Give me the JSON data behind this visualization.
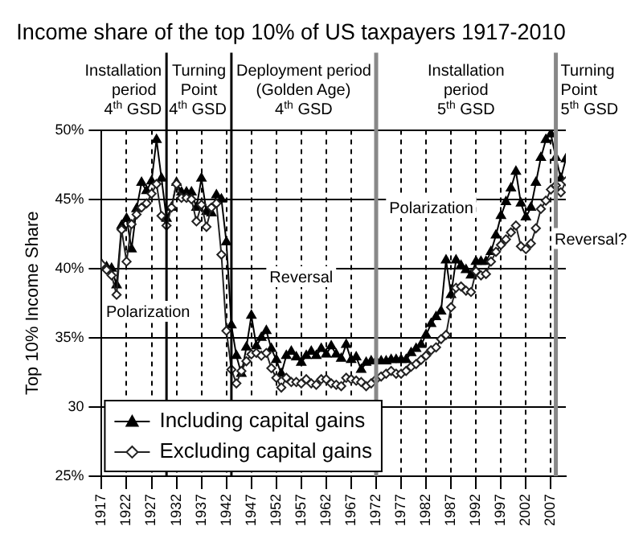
{
  "chart_data": {
    "type": "line",
    "title": "Income share of the top 10% of US taxpayers 1917-2010",
    "ylabel": "Top 10% Income Share",
    "x": [
      1917,
      1918,
      1919,
      1920,
      1921,
      1922,
      1923,
      1924,
      1925,
      1926,
      1927,
      1928,
      1929,
      1930,
      1931,
      1932,
      1933,
      1934,
      1935,
      1936,
      1937,
      1938,
      1939,
      1940,
      1941,
      1942,
      1943,
      1944,
      1945,
      1946,
      1947,
      1948,
      1949,
      1950,
      1951,
      1952,
      1953,
      1954,
      1955,
      1956,
      1957,
      1958,
      1959,
      1960,
      1961,
      1962,
      1963,
      1964,
      1965,
      1966,
      1967,
      1968,
      1969,
      1970,
      1971,
      1972,
      1973,
      1974,
      1975,
      1976,
      1977,
      1978,
      1979,
      1980,
      1981,
      1982,
      1983,
      1984,
      1985,
      1986,
      1987,
      1988,
      1989,
      1990,
      1991,
      1992,
      1993,
      1994,
      1995,
      1996,
      1997,
      1998,
      1999,
      2000,
      2001,
      2002,
      2003,
      2004,
      2005,
      2006,
      2007,
      2008,
      2009,
      2010
    ],
    "series": [
      {
        "name": "Including capital gains",
        "color": "#000000",
        "marker": "triangle",
        "values": [
          40.3,
          40.1,
          40.0,
          38.8,
          43.1,
          43.6,
          41.4,
          44.3,
          46.2,
          45.6,
          46.3,
          49.3,
          46.5,
          43.6,
          44.4,
          46.2,
          45.5,
          45.5,
          45.5,
          44.4,
          46.5,
          44.1,
          44.0,
          45.3,
          45.0,
          41.9,
          35.9,
          33.7,
          32.4,
          34.3,
          36.6,
          34.4,
          35.0,
          35.5,
          34.2,
          33.4,
          32.4,
          33.7,
          34.0,
          33.6,
          33.2,
          33.7,
          34.0,
          33.7,
          34.2,
          33.8,
          34.4,
          33.8,
          33.5,
          34.5,
          33.4,
          33.6,
          32.7,
          33.2,
          33.3,
          33.3,
          33.3,
          33.3,
          33.4,
          33.4,
          33.4,
          33.4,
          33.9,
          34.2,
          34.5,
          35.2,
          36.0,
          36.5,
          36.9,
          40.6,
          38.1,
          40.6,
          40.2,
          39.9,
          39.5,
          40.5,
          40.5,
          40.5,
          41.2,
          42.4,
          43.8,
          44.8,
          45.8,
          47.0,
          44.7,
          43.7,
          44.4,
          46.2,
          48.0,
          49.3,
          49.7,
          48.0,
          46.5,
          47.9
        ]
      },
      {
        "name": "Excluding capital gains",
        "color": "#222222",
        "marker": "diamond",
        "values": [
          40.3,
          39.9,
          39.5,
          38.1,
          42.8,
          40.5,
          43.2,
          43.9,
          44.4,
          44.7,
          45.4,
          46.1,
          43.8,
          43.1,
          44.4,
          46.1,
          45.1,
          45.1,
          45.0,
          43.4,
          44.6,
          43.0,
          44.4,
          44.7,
          41.0,
          35.5,
          32.7,
          31.7,
          32.6,
          33.3,
          33.8,
          33.9,
          33.7,
          33.9,
          32.8,
          32.1,
          31.4,
          32.1,
          31.8,
          31.8,
          31.7,
          32.0,
          31.7,
          31.6,
          32.0,
          32.0,
          31.7,
          31.6,
          31.5,
          32.1,
          32.0,
          31.9,
          31.8,
          31.5,
          31.7,
          32.0,
          32.2,
          32.4,
          32.6,
          32.4,
          32.4,
          32.6,
          32.9,
          33.1,
          33.4,
          33.7,
          34.1,
          34.3,
          34.9,
          35.2,
          37.2,
          38.6,
          38.7,
          38.4,
          38.3,
          39.8,
          39.5,
          39.6,
          40.5,
          41.2,
          41.7,
          42.1,
          42.6,
          43.1,
          41.6,
          41.4,
          41.8,
          42.9,
          44.3,
          44.9,
          45.7,
          46.0,
          45.5,
          46.3
        ]
      }
    ],
    "xlim": [
      1917,
      2010
    ],
    "xticks": [
      1917,
      1922,
      1927,
      1932,
      1937,
      1942,
      1947,
      1952,
      1957,
      1962,
      1967,
      1972,
      1977,
      1982,
      1987,
      1992,
      1997,
      2002,
      2007
    ],
    "ylim": [
      25,
      50
    ],
    "yticks": [
      {
        "value": 25,
        "label": "25%"
      },
      {
        "value": 30,
        "label": "30"
      },
      {
        "value": 35,
        "label": "35%"
      },
      {
        "value": 40,
        "label": "40%"
      },
      {
        "value": 45,
        "label": "45%"
      },
      {
        "value": 50,
        "label": "50%"
      }
    ],
    "grid": true,
    "legend": "bottom left",
    "line_style": "solid",
    "ref_lines": [
      {
        "axis": "x",
        "value": 1930,
        "color": "#000000"
      },
      {
        "axis": "x",
        "value": 1943,
        "color": "#000000"
      },
      {
        "axis": "x",
        "value": 1972,
        "color": "#888888"
      },
      {
        "axis": "x",
        "value": 2008,
        "color": "#888888"
      }
    ],
    "annotations": [
      "Installation\nperiod\n4$^{th}$ GSD",
      "Turning\nPoint\n4$^{th}$ GSD",
      "Deployment period\n(Golden Age)\n4$^{th}$ GSD",
      "Installation\nperiod\n5$^{th}$ GSD",
      "Turning\nPoint\n5$^{th}$ GSD",
      "Polarization",
      "Reversal",
      "Polarization",
      "Reversal?"
    ]
  }
}
